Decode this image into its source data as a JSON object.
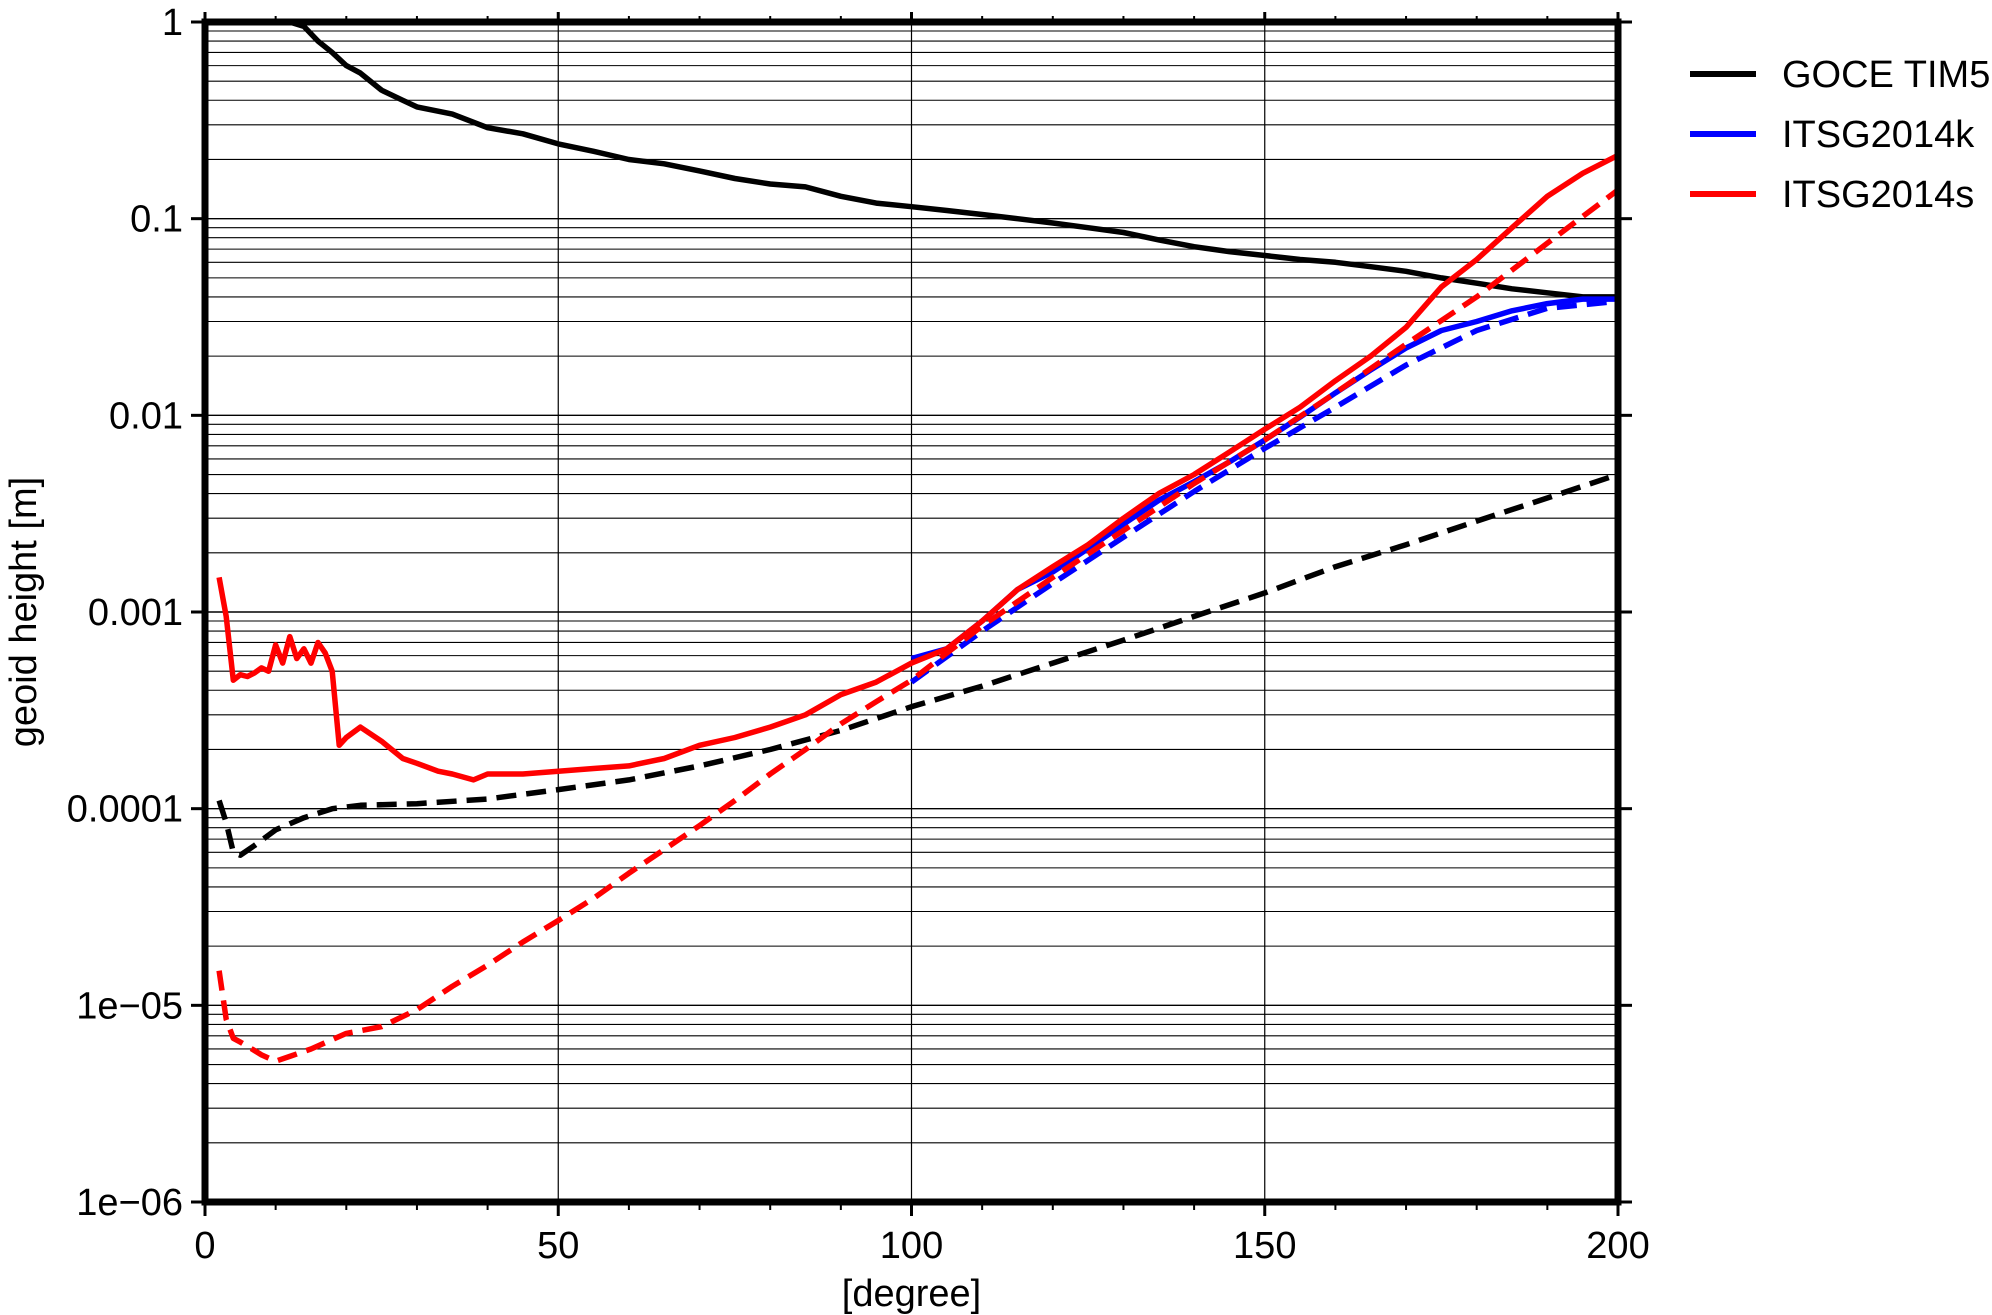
{
  "chart_data": {
    "type": "line",
    "title": "",
    "xlabel": "[degree]",
    "ylabel": "geoid height [m]",
    "xlim": [
      0,
      200
    ],
    "ylim": [
      1e-06,
      1
    ],
    "yscale": "log",
    "grid": true,
    "legend_position": "outside-top-right",
    "x_ticks": [
      0,
      50,
      100,
      150,
      200
    ],
    "x_tick_labels": [
      "0",
      "50",
      "100",
      "150",
      "200"
    ],
    "y_ticks": [
      1e-06,
      1e-05,
      0.0001,
      0.001,
      0.01,
      0.1,
      1
    ],
    "y_tick_labels": [
      "1e−06",
      "1e−05",
      "0.0001",
      "0.001",
      "0.01",
      "0.1",
      "1"
    ],
    "legend": [
      {
        "label": "GOCE TIM5",
        "color": "#000000"
      },
      {
        "label": "ITSG2014k",
        "color": "#0000ff"
      },
      {
        "label": "ITSG2014s",
        "color": "#ff0000"
      }
    ],
    "series": [
      {
        "legend": "GOCE TIM5",
        "style": "solid",
        "color": "#000000",
        "x": [
          12,
          14,
          16,
          18,
          20,
          22,
          25,
          28,
          30,
          35,
          40,
          45,
          50,
          55,
          60,
          65,
          70,
          75,
          80,
          85,
          90,
          95,
          100,
          105,
          110,
          115,
          120,
          125,
          130,
          135,
          140,
          145,
          150,
          155,
          160,
          165,
          170,
          175,
          180,
          185,
          190,
          195,
          200
        ],
        "y": [
          1.0,
          0.95,
          0.8,
          0.7,
          0.6,
          0.55,
          0.45,
          0.4,
          0.37,
          0.34,
          0.29,
          0.27,
          0.24,
          0.22,
          0.2,
          0.19,
          0.175,
          0.16,
          0.15,
          0.145,
          0.13,
          0.12,
          0.115,
          0.11,
          0.105,
          0.1,
          0.095,
          0.09,
          0.085,
          0.078,
          0.072,
          0.068,
          0.065,
          0.062,
          0.06,
          0.057,
          0.054,
          0.05,
          0.047,
          0.044,
          0.042,
          0.04,
          0.04
        ]
      },
      {
        "legend": "GOCE TIM5",
        "style": "dashed",
        "color": "#000000",
        "x": [
          2,
          3,
          4,
          5,
          7,
          10,
          14,
          18,
          22,
          30,
          40,
          50,
          60,
          70,
          80,
          90,
          100,
          110,
          120,
          130,
          140,
          150,
          160,
          170,
          180,
          190,
          200
        ],
        "y": [
          0.00011,
          8.5e-05,
          6e-05,
          5.8e-05,
          6.5e-05,
          7.8e-05,
          9e-05,
          0.0001,
          0.000104,
          0.000106,
          0.000112,
          0.000125,
          0.00014,
          0.000165,
          0.0002,
          0.00025,
          0.00033,
          0.00042,
          0.00055,
          0.00072,
          0.00095,
          0.00125,
          0.0017,
          0.0022,
          0.0029,
          0.0038,
          0.005
        ]
      },
      {
        "legend": "ITSG2014k",
        "style": "solid",
        "color": "#0000ff",
        "x": [
          100,
          105,
          110,
          115,
          120,
          125,
          130,
          135,
          140,
          145,
          150,
          155,
          160,
          165,
          170,
          175,
          180,
          185,
          190,
          195,
          200
        ],
        "y": [
          0.00058,
          0.00065,
          0.0009,
          0.0013,
          0.0016,
          0.0021,
          0.0028,
          0.0037,
          0.0046,
          0.0058,
          0.0075,
          0.0098,
          0.013,
          0.017,
          0.022,
          0.027,
          0.03,
          0.034,
          0.037,
          0.039,
          0.039
        ]
      },
      {
        "legend": "ITSG2014k",
        "style": "dashed",
        "color": "#0000ff",
        "x": [
          100,
          110,
          120,
          130,
          140,
          150,
          160,
          170,
          180,
          190,
          200
        ],
        "y": [
          0.00044,
          0.0008,
          0.0014,
          0.0024,
          0.0041,
          0.0068,
          0.011,
          0.018,
          0.027,
          0.035,
          0.038
        ]
      },
      {
        "legend": "ITSG2014s",
        "style": "solid",
        "color": "#ff0000",
        "x": [
          2,
          3,
          4,
          5,
          6,
          7,
          8,
          9,
          10,
          11,
          12,
          13,
          14,
          15,
          16,
          17,
          18,
          19,
          20,
          22,
          25,
          28,
          30,
          33,
          35,
          38,
          40,
          45,
          50,
          55,
          60,
          65,
          70,
          75,
          80,
          85,
          90,
          95,
          100,
          105,
          110,
          115,
          120,
          125,
          130,
          135,
          140,
          145,
          150,
          155,
          160,
          165,
          170,
          175,
          180,
          185,
          190,
          195,
          200
        ],
        "y": [
          0.0015,
          0.00095,
          0.00045,
          0.00048,
          0.00047,
          0.00049,
          0.00052,
          0.0005,
          0.00068,
          0.00055,
          0.00075,
          0.00058,
          0.00065,
          0.00055,
          0.0007,
          0.00062,
          0.0005,
          0.00021,
          0.00023,
          0.00026,
          0.00022,
          0.00018,
          0.00017,
          0.000155,
          0.00015,
          0.00014,
          0.00015,
          0.00015,
          0.000155,
          0.00016,
          0.000165,
          0.00018,
          0.00021,
          0.00023,
          0.00026,
          0.0003,
          0.00038,
          0.00044,
          0.00055,
          0.00065,
          0.0009,
          0.0013,
          0.0017,
          0.0022,
          0.003,
          0.004,
          0.005,
          0.0065,
          0.0085,
          0.011,
          0.015,
          0.02,
          0.028,
          0.045,
          0.062,
          0.09,
          0.13,
          0.17,
          0.21
        ]
      },
      {
        "legend": "ITSG2014s",
        "style": "dashed",
        "color": "#ff0000",
        "x": [
          2,
          3,
          4,
          5,
          6,
          8,
          10,
          12,
          15,
          20,
          25,
          30,
          35,
          40,
          45,
          50,
          55,
          60,
          65,
          70,
          75,
          80,
          85,
          90,
          95,
          100,
          110,
          120,
          130,
          140,
          150,
          160,
          170,
          180,
          190,
          200
        ],
        "y": [
          1.5e-05,
          8.5e-06,
          6.8e-06,
          6.5e-06,
          6.2e-06,
          5.6e-06,
          5.2e-06,
          5.5e-06,
          6e-06,
          7.2e-06,
          7.8e-06,
          9.5e-06,
          1.25e-05,
          1.6e-05,
          2.1e-05,
          2.7e-05,
          3.5e-05,
          4.7e-05,
          6.2e-05,
          8.2e-05,
          0.00011,
          0.00015,
          0.0002,
          0.00027,
          0.00035,
          0.00045,
          0.00085,
          0.0015,
          0.0026,
          0.0045,
          0.0075,
          0.013,
          0.023,
          0.04,
          0.075,
          0.14
        ]
      }
    ]
  }
}
